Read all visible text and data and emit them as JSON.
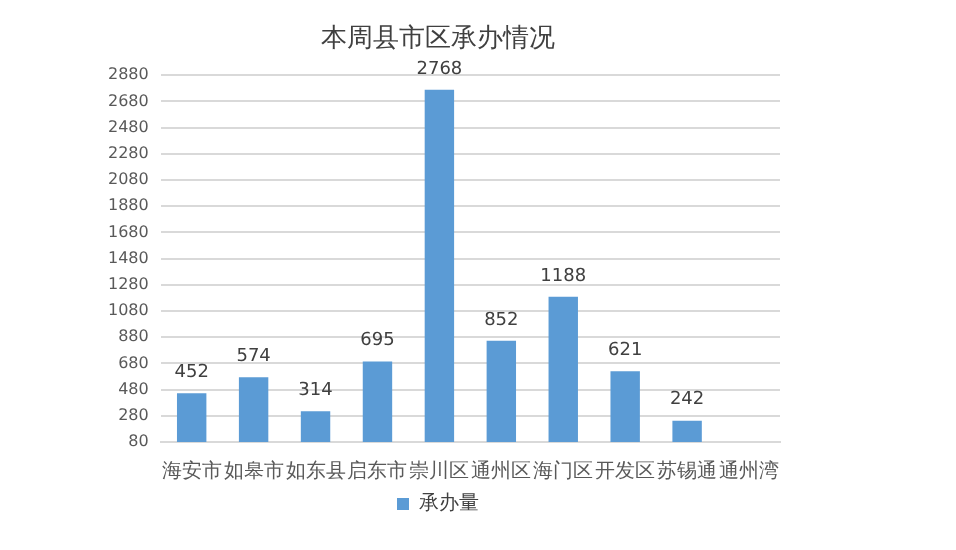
{
  "chart_data": {
    "type": "bar",
    "title": "本周县市区承办情况",
    "categories": [
      "海安市",
      "如皋市",
      "如东县",
      "启东市",
      "崇川区",
      "通州区",
      "海门区",
      "开发区",
      "苏锡通",
      "通州湾"
    ],
    "series": [
      {
        "name": "承办量",
        "color": "#5b9bd5",
        "values": [
          452,
          574,
          314,
          695,
          2768,
          852,
          1188,
          621,
          242,
          null
        ]
      }
    ],
    "ylim": [
      80,
      2880
    ],
    "yticks": [
      80,
      280,
      480,
      680,
      880,
      1080,
      1280,
      1480,
      1680,
      1880,
      2080,
      2280,
      2480,
      2680,
      2880
    ],
    "grid": "y",
    "legend": "bottom",
    "data_labels": true
  }
}
